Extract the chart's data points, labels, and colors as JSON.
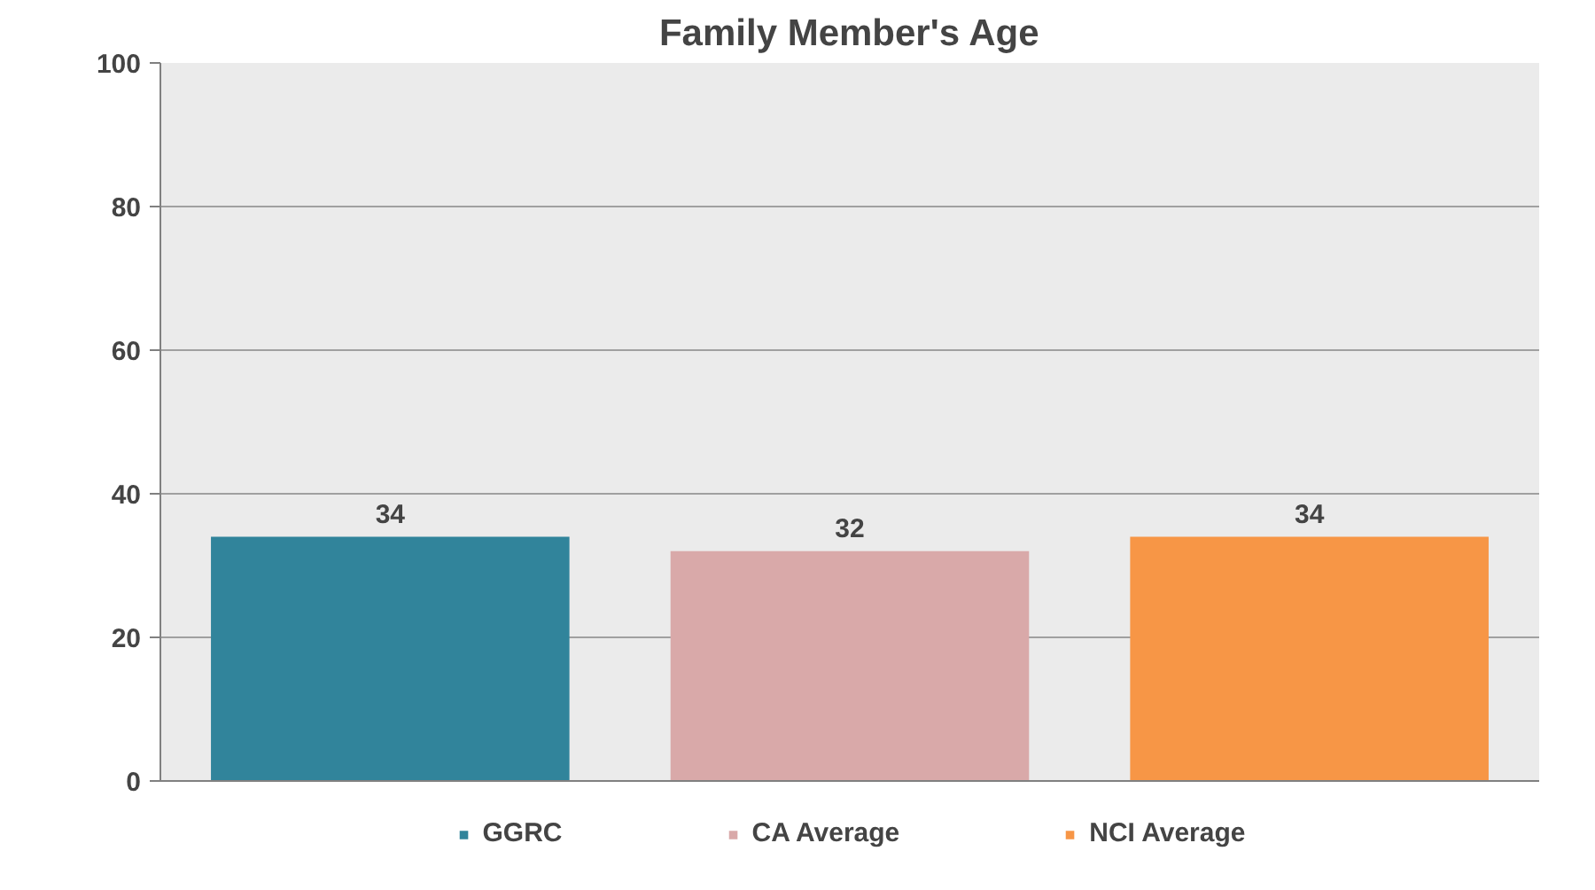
{
  "chart_data": {
    "type": "bar",
    "title": "Family Member's Age",
    "categories": [
      null
    ],
    "series": [
      {
        "name": "GGRC",
        "color": "#31849b",
        "values": [
          34
        ]
      },
      {
        "name": "CA Average",
        "color": "#d9a9a9",
        "values": [
          32
        ]
      },
      {
        "name": "NCI Average",
        "color": "#f79646",
        "values": [
          34
        ]
      }
    ],
    "ylim": [
      0,
      100
    ],
    "yticks": [
      0,
      20,
      40,
      60,
      80,
      100
    ],
    "grid": "y",
    "legend": "bottom",
    "data_labels": true
  }
}
